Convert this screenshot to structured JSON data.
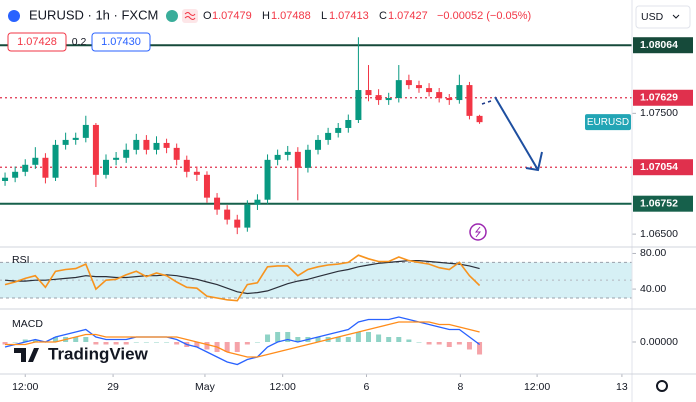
{
  "header": {
    "symbol": "EURUSD · 1h · FXCM",
    "o_label": "O",
    "h_label": "H",
    "l_label": "L",
    "c_label": "C",
    "change": "−0.00052 (−0.05%)",
    "bid": "1.07428",
    "spread": "0.2",
    "ask": "1.07430",
    "currency": "USD",
    "logo": "TradingView"
  },
  "chart_data": [
    {
      "type": "candlestick",
      "tag": "EURUSD",
      "up_color": "#089981",
      "down_color": "#f23645",
      "open": [
        1.0694,
        1.06967,
        1.07016,
        1.07074,
        1.07132,
        1.06967,
        1.07239,
        1.0728,
        1.07297,
        1.07404,
        1.06991,
        1.07115,
        1.07132,
        1.07198,
        1.0728,
        1.07198,
        1.07255,
        1.07214,
        1.07115,
        1.07016,
        1.06991,
        1.06802,
        1.06703,
        1.0662,
        1.06554,
        1.06744,
        1.06785,
        1.07115,
        1.07156,
        1.07181,
        1.07049,
        1.07198,
        1.0728,
        1.07338,
        1.07379,
        1.07445,
        1.07693,
        1.07651,
        1.0761,
        1.07627,
        1.07775,
        1.07734,
        1.07709,
        1.07676,
        1.07627,
        1.0761,
        1.07734,
        1.07479
      ],
      "high": [
        1.0701,
        1.0706,
        1.0712,
        1.0722,
        1.0717,
        1.0728,
        1.0734,
        1.0734,
        1.0748,
        1.0742,
        1.0716,
        1.0718,
        1.0725,
        1.0733,
        1.0732,
        1.0731,
        1.0729,
        1.0725,
        1.0715,
        1.0706,
        1.0702,
        1.0684,
        1.0674,
        1.0666,
        1.0678,
        1.0683,
        1.0716,
        1.072,
        1.0723,
        1.0722,
        1.0724,
        1.0732,
        1.0738,
        1.0742,
        1.0749,
        1.0813,
        1.079,
        1.077,
        1.0767,
        1.079,
        1.0782,
        1.0777,
        1.0775,
        1.0771,
        1.0766,
        1.0782,
        1.0776,
        1.07488
      ],
      "low": [
        1.069,
        1.0693,
        1.0698,
        1.0704,
        1.0692,
        1.0694,
        1.072,
        1.0724,
        1.0726,
        1.0689,
        1.0696,
        1.0707,
        1.0709,
        1.0716,
        1.0716,
        1.0716,
        1.0717,
        1.0707,
        1.0697,
        1.0694,
        1.0676,
        1.0666,
        1.0658,
        1.065,
        1.0652,
        1.067,
        1.0675,
        1.0707,
        1.0711,
        1.0678,
        1.0701,
        1.0716,
        1.0724,
        1.073,
        1.0734,
        1.0742,
        1.076,
        1.0757,
        1.0757,
        1.0759,
        1.077,
        1.0767,
        1.0764,
        1.0759,
        1.0757,
        1.0758,
        1.0745,
        1.07413
      ],
      "close": [
        1.06967,
        1.07016,
        1.07074,
        1.07132,
        1.06967,
        1.07239,
        1.0728,
        1.07297,
        1.07404,
        1.06991,
        1.07115,
        1.07132,
        1.07198,
        1.0728,
        1.07198,
        1.07255,
        1.07214,
        1.07115,
        1.07016,
        1.06991,
        1.06802,
        1.06703,
        1.0662,
        1.06554,
        1.06744,
        1.06785,
        1.07115,
        1.07156,
        1.07181,
        1.07049,
        1.07198,
        1.0728,
        1.07338,
        1.07379,
        1.07445,
        1.07693,
        1.07651,
        1.0761,
        1.07627,
        1.07775,
        1.07734,
        1.07709,
        1.07676,
        1.07627,
        1.0761,
        1.07734,
        1.07479,
        1.07427
      ],
      "levels": [
        {
          "value": 1.08064,
          "color": "#164a3a",
          "style": "solid"
        },
        {
          "value": 1.07629,
          "color": "#e0304d",
          "style": "dotted"
        },
        {
          "value": 1.07054,
          "color": "#e0304d",
          "style": "dotted"
        },
        {
          "value": 1.06752,
          "color": "#16604b",
          "style": "solid"
        }
      ],
      "ylim": [
        1.0641,
        1.0819
      ],
      "yticks": [
        {
          "value": 1.075,
          "label": "1.07500"
        },
        {
          "value": 1.065,
          "label": "1.06500"
        }
      ],
      "xlim": [
        -0.5,
        62.1
      ],
      "xticks": [
        {
          "value": 2,
          "label": "12:00"
        },
        {
          "value": 10.7,
          "label": "29"
        },
        {
          "value": 19.8,
          "label": "May"
        },
        {
          "value": 27.5,
          "label": "12:00"
        },
        {
          "value": 35.8,
          "label": "6"
        },
        {
          "value": 45.1,
          "label": "8"
        },
        {
          "value": 52.7,
          "label": "12:00"
        },
        {
          "value": 61.1,
          "label": "13"
        }
      ],
      "grid": false
    },
    {
      "type": "line",
      "title": "RSI",
      "band": [
        30,
        70
      ],
      "band_color": "#d6f0f5",
      "midline": 50,
      "series": [
        {
          "color": "#f7931e",
          "values": [
            45,
            48,
            52,
            55,
            42,
            60,
            62,
            63,
            68,
            40,
            50,
            51,
            56,
            60,
            54,
            58,
            55,
            48,
            42,
            41,
            32,
            30,
            28,
            27,
            45,
            47,
            65,
            66,
            66,
            55,
            62,
            65,
            67,
            68,
            70,
            78,
            74,
            71,
            71,
            76,
            72,
            70,
            68,
            64,
            62,
            70,
            55,
            44
          ]
        },
        {
          "color": "#2a2e39",
          "values": [
            50,
            49,
            49,
            50,
            50,
            51,
            52,
            53,
            55,
            54,
            54,
            53,
            53,
            54,
            55,
            55,
            56,
            55,
            53,
            51,
            48,
            45,
            41,
            37,
            35,
            36,
            38,
            42,
            46,
            49,
            51,
            54,
            57,
            60,
            62,
            65,
            67,
            69,
            70,
            71,
            72,
            72,
            71,
            70,
            69,
            68,
            66,
            63
          ]
        }
      ],
      "ylim": [
        21,
        85
      ],
      "yticks": [
        {
          "value": 80,
          "label": "80.00"
        },
        {
          "value": 40,
          "label": "40.00"
        }
      ]
    },
    {
      "type": "macd",
      "title": "MACD",
      "histogram_colors": [
        "#8fd3c6",
        "#f5a3a8"
      ],
      "histogram": [
        -0.0001,
        0,
        0.0001,
        0.0001,
        0,
        0.0002,
        0.0002,
        0.0002,
        0.0002,
        -0.0001,
        -0.0001,
        -0.0001,
        -0.0001,
        0,
        0,
        0,
        0,
        -0.0001,
        -0.0002,
        -0.0002,
        -0.0003,
        -0.0004,
        -0.0004,
        -0.0004,
        -0.0001,
        0,
        0.0003,
        0.0004,
        0.0004,
        0.0002,
        0.0002,
        0.0002,
        0.0002,
        0.0002,
        0.0002,
        0.0004,
        0.0004,
        0.0003,
        0.0002,
        0.0002,
        0.0001,
        0,
        -0.0001,
        -0.0001,
        -0.0002,
        -0.0001,
        -0.0003,
        -0.0005
      ],
      "series": [
        {
          "color": "#2962ff",
          "values": [
            -0.0002,
            -0.0001,
            0,
            0.0001,
            0,
            0.0002,
            0.0003,
            0.0004,
            0.0005,
            0.0002,
            0.0001,
            0.0001,
            0.0001,
            0.0002,
            0.0002,
            0.0002,
            0.0002,
            0.0001,
            -0.0001,
            -0.0002,
            -0.0004,
            -0.0006,
            -0.0008,
            -0.0009,
            -0.0007,
            -0.0006,
            -0.0002,
            0,
            0.0001,
            0,
            0.0001,
            0.0002,
            0.0003,
            0.0004,
            0.0005,
            0.0008,
            0.0009,
            0.0009,
            0.0009,
            0.001,
            0.0009,
            0.0008,
            0.0007,
            0.0006,
            0.0005,
            0.0005,
            0.0002,
            -0.0001
          ]
        },
        {
          "color": "#ff8c1a",
          "values": [
            -0.0001,
            -0.0001,
            -0.0001,
            0,
            0,
            0,
            0.0001,
            0.0002,
            0.0003,
            0.0003,
            0.0002,
            0.0002,
            0.0002,
            0.0002,
            0.0002,
            0.0002,
            0.0002,
            0.0002,
            0.0001,
            0,
            -0.0001,
            -0.0002,
            -0.0004,
            -0.0005,
            -0.0006,
            -0.0006,
            -0.0005,
            -0.0004,
            -0.0003,
            -0.0002,
            -0.0001,
            0,
            0.0001,
            0.0002,
            0.0003,
            0.0004,
            0.0005,
            0.0006,
            0.0007,
            0.0008,
            0.0008,
            0.0008,
            0.0008,
            0.0007,
            0.0007,
            0.0006,
            0.0005,
            0.0004
          ]
        }
      ],
      "ylim": [
        -0.0012,
        0.0012
      ],
      "yticks": [
        {
          "value": 0,
          "label": "0.00000"
        }
      ]
    }
  ]
}
